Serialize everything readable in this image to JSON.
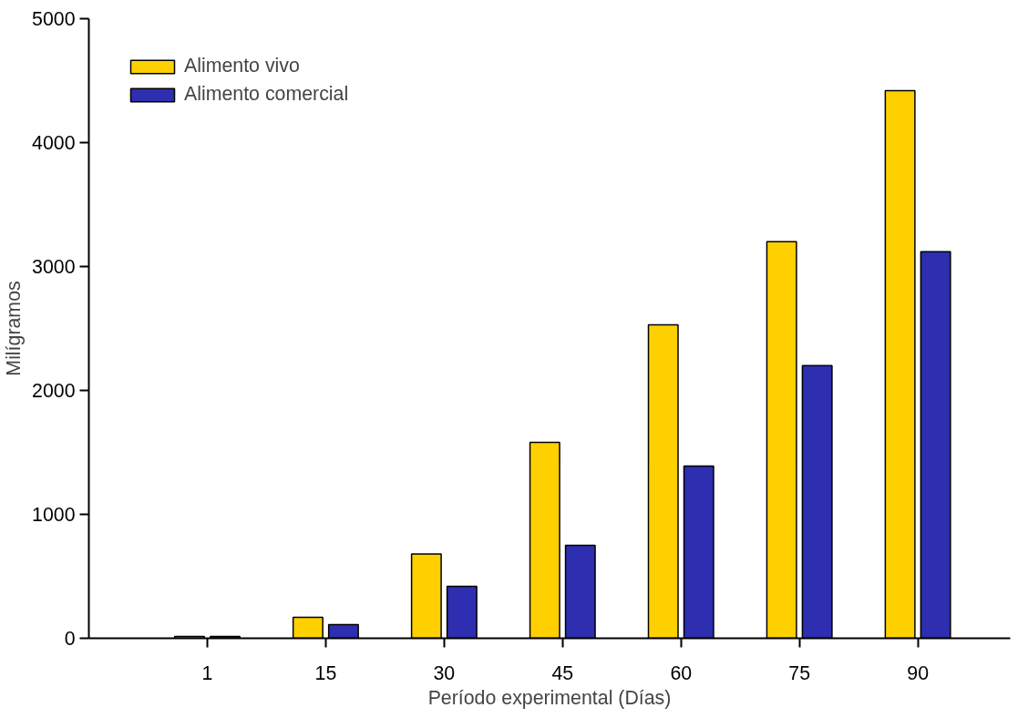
{
  "chart_data": {
    "type": "bar",
    "xlabel": "Período experimental (Días)",
    "ylabel": "Milígramos",
    "categories": [
      "1",
      "15",
      "30",
      "45",
      "60",
      "75",
      "90"
    ],
    "series": [
      {
        "name": "Alimento vivo",
        "color": "#ffd000",
        "values": [
          15,
          170,
          680,
          1580,
          2530,
          3200,
          4420
        ]
      },
      {
        "name": "Alimento comercial",
        "color": "#2e2eb0",
        "values": [
          15,
          110,
          420,
          750,
          1390,
          2200,
          3120
        ]
      }
    ],
    "ylim": [
      0,
      5000
    ],
    "yticks": [
      0,
      1000,
      2000,
      3000,
      4000,
      5000
    ],
    "grid": false,
    "legend": "top left"
  }
}
